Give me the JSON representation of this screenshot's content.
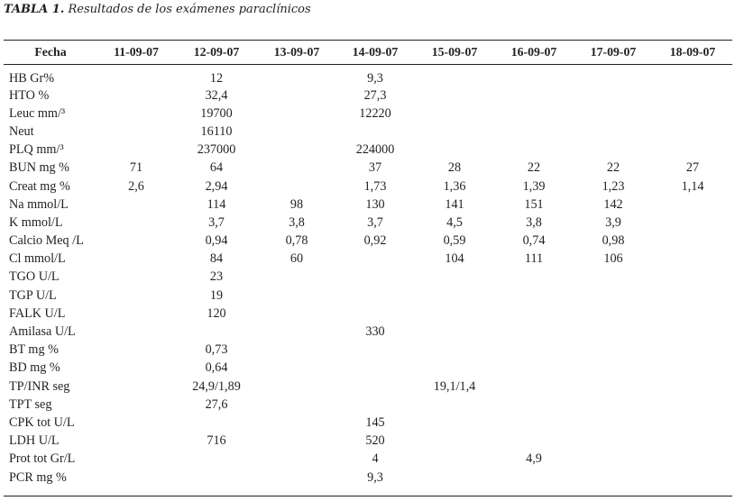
{
  "caption": {
    "label": "TABLA 1.",
    "text": "Resultados de los exámenes paraclínicos"
  },
  "table": {
    "headers": [
      "Fecha",
      "11-09-07",
      "12-09-07",
      "13-09-07",
      "14-09-07",
      "15-09-07",
      "16-09-07",
      "17-09-07",
      "18-09-07"
    ],
    "rows": [
      [
        "HB Gr%",
        "",
        "12",
        "",
        "9,3",
        "",
        "",
        "",
        ""
      ],
      [
        "HTO %",
        "",
        "32,4",
        "",
        "27,3",
        "",
        "",
        "",
        ""
      ],
      [
        "Leuc mm/³",
        "",
        "19700",
        "",
        "12220",
        "",
        "",
        "",
        ""
      ],
      [
        "Neut",
        "",
        "16110",
        "",
        "",
        "",
        "",
        "",
        ""
      ],
      [
        "PLQ mm/³",
        "",
        "237000",
        "",
        "224000",
        "",
        "",
        "",
        ""
      ],
      [
        "BUN mg %",
        "71",
        "64",
        "",
        "37",
        "28",
        "22",
        "22",
        "27"
      ],
      [
        "Creat mg %",
        "2,6",
        "2,94",
        "",
        "1,73",
        "1,36",
        "1,39",
        "1,23",
        "1,14"
      ],
      [
        "Na mmol/L",
        "",
        "114",
        "98",
        "130",
        "141",
        "151",
        "142",
        ""
      ],
      [
        "K mmol/L",
        "",
        "3,7",
        "3,8",
        "3,7",
        "4,5",
        "3,8",
        "3,9",
        ""
      ],
      [
        "Calcio Meq /L",
        "",
        "0,94",
        "0,78",
        "0,92",
        "0,59",
        "0,74",
        "0,98",
        ""
      ],
      [
        "Cl mmol/L",
        "",
        "84",
        "60",
        "",
        "104",
        "111",
        "106",
        ""
      ],
      [
        "TGO U/L",
        "",
        "23",
        "",
        "",
        "",
        "",
        "",
        ""
      ],
      [
        "TGP U/L",
        "",
        "19",
        "",
        "",
        "",
        "",
        "",
        ""
      ],
      [
        "FALK U/L",
        "",
        "120",
        "",
        "",
        "",
        "",
        "",
        ""
      ],
      [
        "Amilasa U/L",
        "",
        "",
        "",
        "330",
        "",
        "",
        "",
        ""
      ],
      [
        "BT mg %",
        "",
        "0,73",
        "",
        "",
        "",
        "",
        "",
        ""
      ],
      [
        "BD mg %",
        "",
        "0,64",
        "",
        "",
        "",
        "",
        "",
        ""
      ],
      [
        "TP/INR seg",
        "",
        "24,9/1,89",
        "",
        "",
        "19,1/1,4",
        "",
        "",
        ""
      ],
      [
        "TPT seg",
        "",
        "27,6",
        "",
        "",
        "",
        "",
        "",
        ""
      ],
      [
        "CPK tot U/L",
        "",
        "",
        "",
        "145",
        "",
        "",
        "",
        ""
      ],
      [
        "LDH U/L",
        "",
        "716",
        "",
        "520",
        "",
        "",
        "",
        ""
      ],
      [
        "Prot tot Gr/L",
        "",
        "",
        "",
        "4",
        "",
        "4,9",
        "",
        ""
      ],
      [
        "PCR mg %",
        "",
        "",
        "",
        "9,3",
        "",
        "",
        "",
        ""
      ]
    ]
  }
}
